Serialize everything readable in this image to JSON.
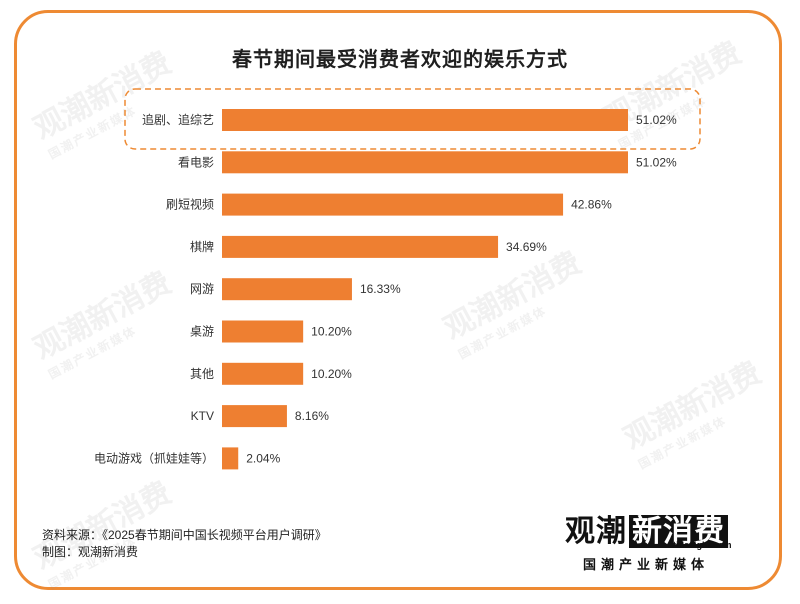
{
  "chart_data": {
    "type": "bar",
    "orientation": "horizontal",
    "title": "春节期间最受消费者欢迎的娱乐方式",
    "categories": [
      "追剧、追综艺",
      "看电影",
      "刷短视频",
      "棋牌",
      "网游",
      "桌游",
      "其他",
      "KTV",
      "电动游戏（抓娃娃等）"
    ],
    "values": [
      51.02,
      51.02,
      42.86,
      34.69,
      16.33,
      10.2,
      10.2,
      8.16,
      2.04
    ],
    "value_labels": [
      "51.02%",
      "51.02%",
      "42.86%",
      "34.69%",
      "16.33%",
      "10.20%",
      "10.20%",
      "8.16%",
      "2.04%"
    ],
    "xlim": [
      0,
      51.02
    ],
    "grid": false,
    "bar_color": "#ee7f31",
    "highlighted_category": "追剧、追综艺"
  },
  "footer": {
    "source": "资料来源：《2025春节期间中国长视频平台用户调研》",
    "credit": "制图：观潮新消费"
  },
  "logo": {
    "part1": "观潮",
    "part2": "新消费",
    "url": "tidesight.com",
    "slogan": "国潮产业新媒体"
  },
  "colors": {
    "accent": "#ee8a33",
    "bar": "#ee7f31"
  }
}
